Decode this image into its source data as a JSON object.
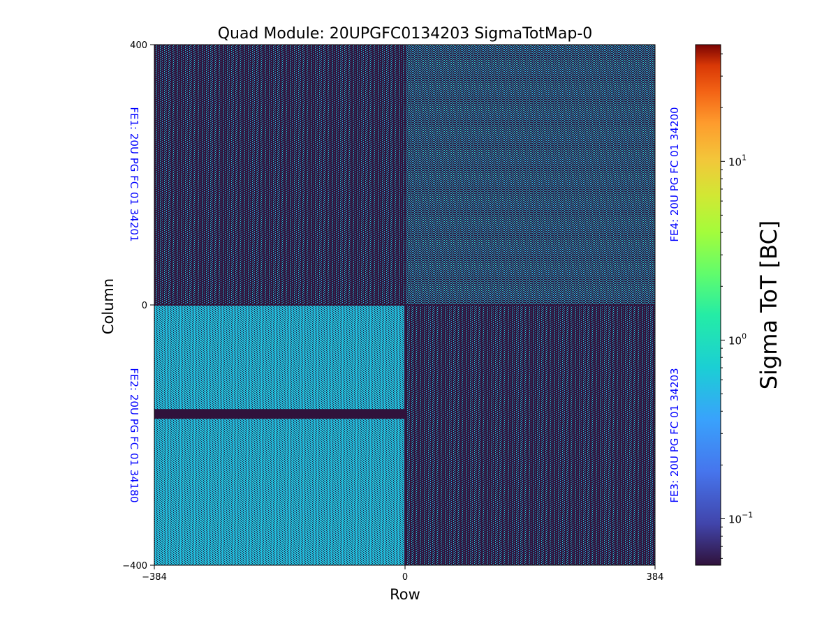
{
  "chart_data": {
    "type": "heatmap",
    "title": "Quad Module: 20UPGFC0134203 SigmaTotMap-0",
    "xlabel": "Row",
    "ylabel": "Column",
    "xlim": [
      -384,
      384
    ],
    "ylim": [
      -400,
      400
    ],
    "x_ticks": [
      "−384",
      "0",
      "384"
    ],
    "y_ticks": [
      "400",
      "0",
      "−400"
    ],
    "colormap": "turbo",
    "color_scale": "log",
    "colorbar": {
      "label": "Sigma ToT [BC]",
      "range": [
        0.055,
        45
      ],
      "ticks": [
        {
          "value": 10,
          "base": "10",
          "exp": "1"
        },
        {
          "value": 1,
          "base": "10",
          "exp": "0"
        },
        {
          "value": 0.1,
          "base": "10",
          "exp": "−1"
        }
      ]
    },
    "quadrants": [
      {
        "name": "FE1",
        "label": "FE1: 20U PG FC 01 34201",
        "position": "top-left",
        "typical_sigma": 0.15,
        "active_fraction": 0.3
      },
      {
        "name": "FE4",
        "label": "FE4: 20U PG FC 01 34200",
        "position": "top-right",
        "typical_sigma": 0.3,
        "active_fraction": 0.45
      },
      {
        "name": "FE2",
        "label": "FE2: 20U PG FC 01 34180",
        "position": "bottom-left",
        "typical_sigma": 0.3,
        "active_fraction": 0.6
      },
      {
        "name": "FE3",
        "label": "FE3: 20U PG FC 01 34203",
        "position": "bottom-right",
        "typical_sigma": 0.15,
        "active_fraction": 0.25
      }
    ],
    "features": {
      "dead_band_FE2_y_range": [
        -175,
        -160
      ]
    },
    "colors": {
      "low": "#30123b",
      "mid": "#1fc8de",
      "fe_label": "#0000ff"
    }
  }
}
